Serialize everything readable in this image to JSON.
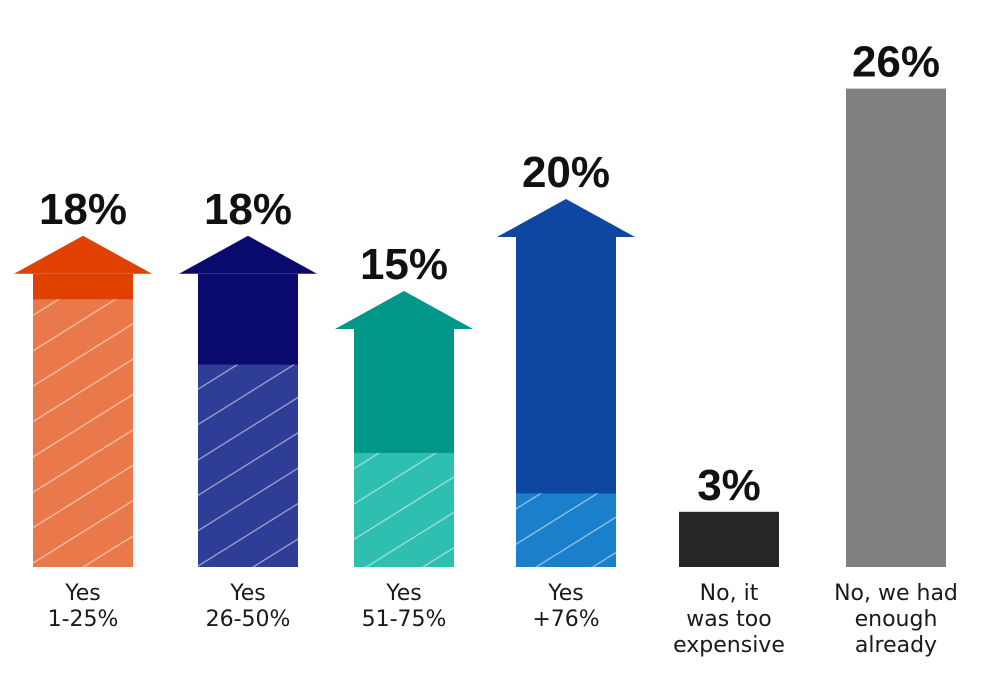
{
  "chart_data": {
    "type": "bar",
    "title": "",
    "xlabel": "",
    "ylabel": "",
    "ylim": [
      0,
      28
    ],
    "grid": false,
    "legend": "none",
    "categories": [
      "Yes\n1-25%",
      "Yes\n26-50%",
      "Yes\n51-75%",
      "Yes\n+76%",
      "No, it\nwas too\nexpensive",
      "No, we had\nenough\nalready"
    ],
    "values": [
      18,
      18,
      15,
      20,
      3,
      26
    ],
    "data_labels": [
      "18%",
      "18%",
      "15%",
      "20%",
      "3%",
      "26%"
    ],
    "styles": [
      {
        "shape": "arrow",
        "top_color": "#e04000",
        "bottom_color": "#e9784a",
        "split_value": 14.55
      },
      {
        "shape": "arrow",
        "top_color": "#0a0a6e",
        "bottom_color": "#2e3e96",
        "split_value": 11.0
      },
      {
        "shape": "arrow",
        "top_color": "#009688",
        "bottom_color": "#2ebfb0",
        "split_value": 6.2
      },
      {
        "shape": "arrow",
        "top_color": "#0d47a1",
        "bottom_color": "#1a80cc",
        "split_value": 4.0
      },
      {
        "shape": "rect",
        "top_color": "#262626",
        "bottom_color": "#262626"
      },
      {
        "shape": "rect",
        "top_color": "#808080",
        "bottom_color": "#808080"
      }
    ]
  }
}
